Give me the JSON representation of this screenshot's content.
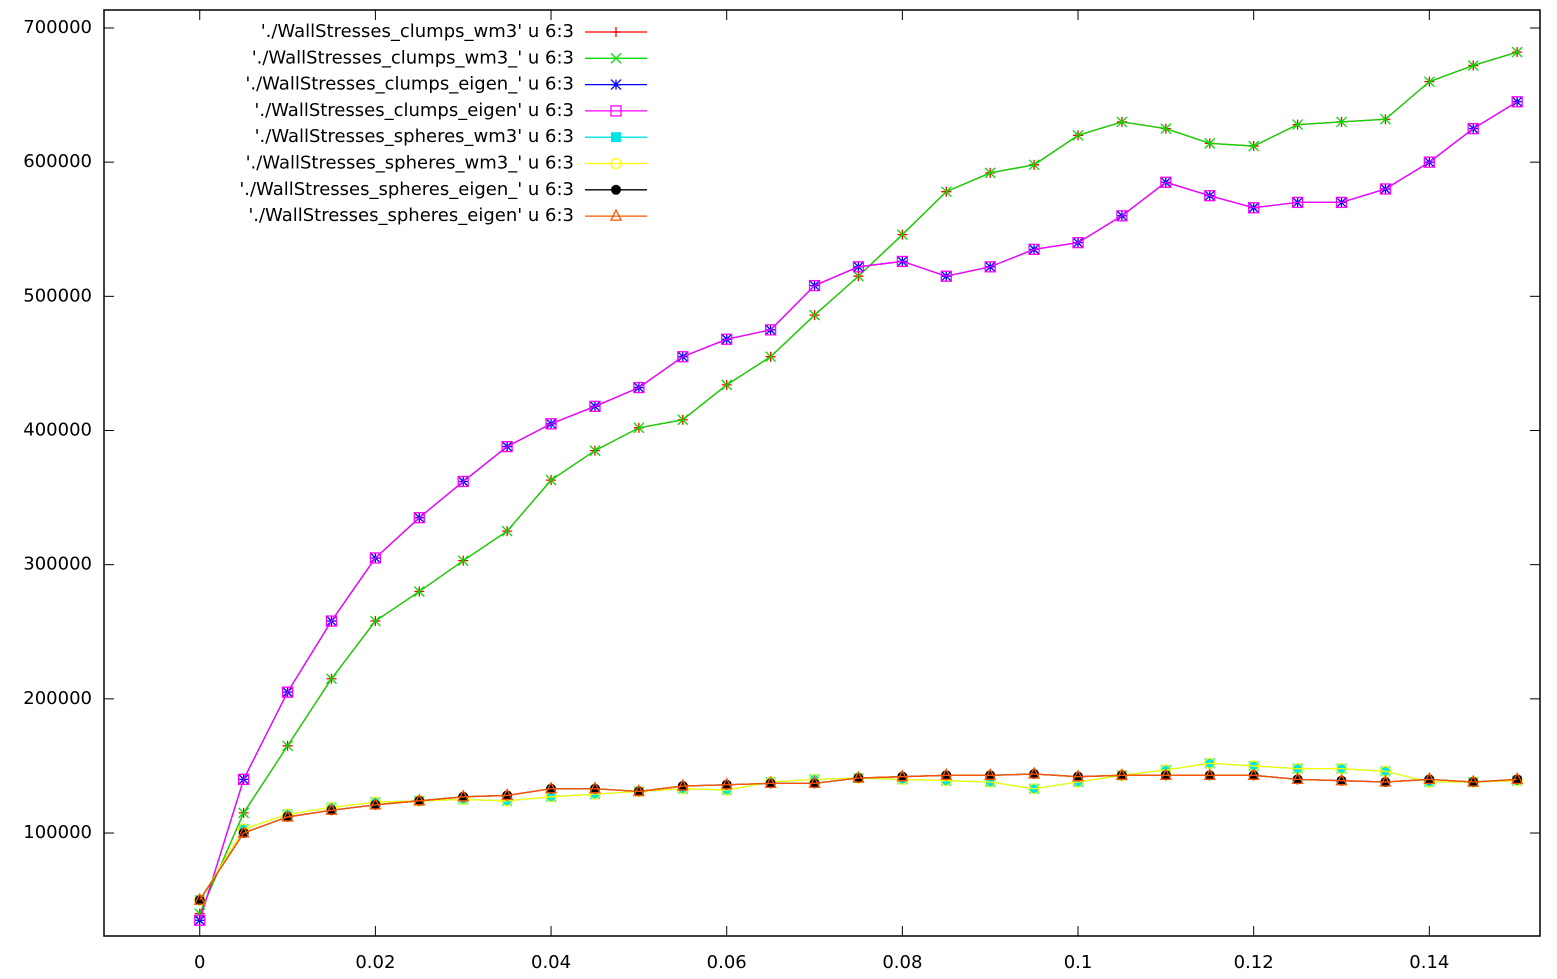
{
  "chart_data": {
    "type": "line",
    "x": [
      0,
      0.005,
      0.01,
      0.015,
      0.02,
      0.025,
      0.03,
      0.035,
      0.04,
      0.045,
      0.05,
      0.055,
      0.06,
      0.065,
      0.07,
      0.075,
      0.08,
      0.085,
      0.09,
      0.095,
      0.1,
      0.105,
      0.11,
      0.115,
      0.12,
      0.125,
      0.13,
      0.135,
      0.14,
      0.145,
      0.15
    ],
    "xlim": [
      -0.0109,
      0.1526
    ],
    "ylim": [
      23250,
      713400
    ],
    "xticks": [
      0,
      0.02,
      0.04,
      0.06,
      0.08,
      0.1,
      0.12,
      0.14
    ],
    "yticks": [
      100000,
      200000,
      300000,
      400000,
      500000,
      600000,
      700000
    ],
    "legend": "top-left",
    "series": [
      {
        "name": "'./WallStresses_clumps_wm3' u 6:3",
        "color": "#ff0000",
        "marker": "plus",
        "values": [
          40000,
          115000,
          165000,
          215000,
          258000,
          280000,
          303000,
          325000,
          363000,
          385000,
          402000,
          408000,
          434000,
          455000,
          486000,
          515000,
          546000,
          578000,
          592000,
          598000,
          620000,
          630000,
          625000,
          614000,
          612000,
          628000,
          630000,
          632000,
          660000,
          672000,
          682000
        ]
      },
      {
        "name": "'./WallStresses_clumps_wm3_' u 6:3",
        "color": "#00dd00",
        "marker": "cross",
        "values": [
          40000,
          115000,
          165000,
          215000,
          258000,
          280000,
          303000,
          325000,
          363000,
          385000,
          402000,
          408000,
          434000,
          455000,
          486000,
          515000,
          546000,
          578000,
          592000,
          598000,
          620000,
          630000,
          625000,
          614000,
          612000,
          628000,
          630000,
          632000,
          660000,
          672000,
          682000
        ]
      },
      {
        "name": "'./WallStresses_clumps_eigen_' u 6:3",
        "color": "#0000ff",
        "marker": "star",
        "values": [
          35000,
          140000,
          205000,
          258000,
          305000,
          335000,
          362000,
          388000,
          405000,
          418000,
          432000,
          455000,
          468000,
          475000,
          508000,
          522000,
          526000,
          515000,
          522000,
          535000,
          540000,
          560000,
          585000,
          575000,
          566000,
          570000,
          570000,
          580000,
          600000,
          625000,
          645000
        ]
      },
      {
        "name": "'./WallStresses_clumps_eigen' u 6:3",
        "color": "#ff00ff",
        "marker": "square",
        "values": [
          35000,
          140000,
          205000,
          258000,
          305000,
          335000,
          362000,
          388000,
          405000,
          418000,
          432000,
          455000,
          468000,
          475000,
          508000,
          522000,
          526000,
          515000,
          522000,
          535000,
          540000,
          560000,
          585000,
          575000,
          566000,
          570000,
          570000,
          580000,
          600000,
          625000,
          645000
        ]
      },
      {
        "name": "'./WallStresses_spheres_wm3' u 6:3",
        "color": "#00e5e5",
        "marker": "filled-square",
        "values": [
          50000,
          103000,
          114000,
          119000,
          123000,
          124000,
          125000,
          124000,
          127000,
          129000,
          131000,
          133000,
          132000,
          138000,
          140000,
          141000,
          140000,
          139000,
          138000,
          133000,
          138000,
          143000,
          147000,
          152000,
          150000,
          148000,
          148000,
          146000,
          138000,
          138000,
          139000
        ]
      },
      {
        "name": "'./WallStresses_spheres_wm3_' u 6:3",
        "color": "#ffff00",
        "marker": "circle",
        "values": [
          50000,
          103000,
          114000,
          119000,
          123000,
          124000,
          125000,
          124000,
          127000,
          129000,
          131000,
          133000,
          132000,
          138000,
          140000,
          141000,
          140000,
          139000,
          138000,
          133000,
          138000,
          143000,
          147000,
          152000,
          150000,
          148000,
          148000,
          146000,
          138000,
          138000,
          139000
        ]
      },
      {
        "name": "'./WallStresses_spheres_eigen_' u 6:3",
        "color": "#000000",
        "marker": "filled-circle",
        "values": [
          50000,
          100000,
          112000,
          117000,
          121000,
          124000,
          127000,
          128000,
          133000,
          133000,
          131000,
          135000,
          136000,
          137000,
          137000,
          141000,
          142000,
          143000,
          143000,
          144000,
          142000,
          143000,
          143000,
          143000,
          143000,
          140000,
          139000,
          138000,
          140000,
          138000,
          140000
        ]
      },
      {
        "name": "'./WallStresses_spheres_eigen' u 6:3",
        "color": "#ff5500",
        "marker": "triangle",
        "values": [
          50000,
          100000,
          112000,
          117000,
          121000,
          124000,
          127000,
          128000,
          133000,
          133000,
          131000,
          135000,
          136000,
          137000,
          137000,
          141000,
          142000,
          143000,
          143000,
          144000,
          142000,
          143000,
          143000,
          143000,
          143000,
          140000,
          139000,
          138000,
          140000,
          138000,
          140000
        ]
      }
    ]
  }
}
